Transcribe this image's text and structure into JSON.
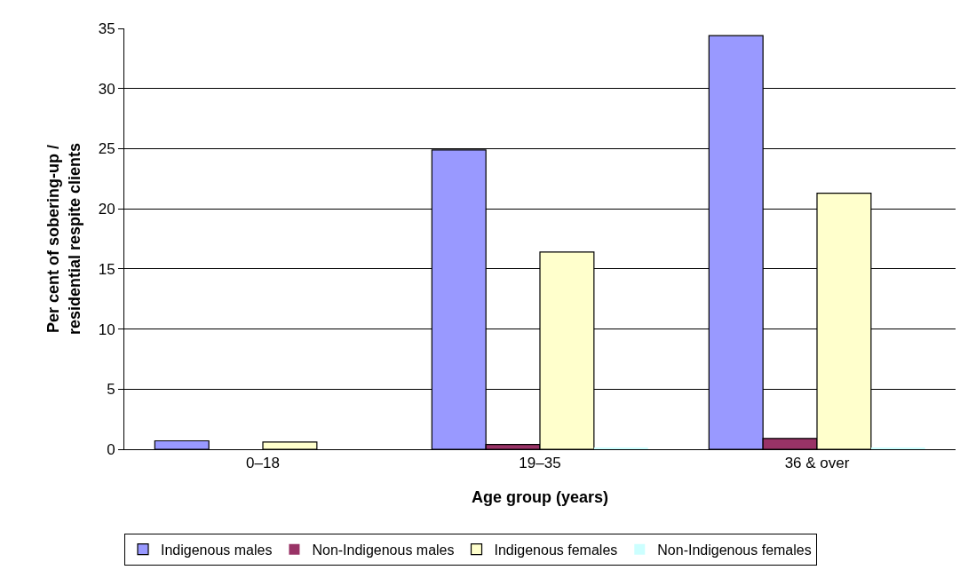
{
  "chart_data": {
    "type": "bar",
    "xlabel": "Age group (years)",
    "ylabel": "Per cent of sobering-up /\nresidential respite clients",
    "categories": [
      "0–18",
      "19–35",
      "36 & over"
    ],
    "series": [
      {
        "name": "Indigenous males",
        "color": "#9999ff",
        "values": [
          0.7,
          24.9,
          34.4
        ]
      },
      {
        "name": "Non-Indigenous males",
        "color": "#993366",
        "values": [
          0,
          0.4,
          0.9
        ]
      },
      {
        "name": "Indigenous females",
        "color": "#ffffcc",
        "values": [
          0.6,
          16.4,
          21.3
        ]
      },
      {
        "name": "Non-Indigenous females",
        "color": "#ccffff",
        "values": [
          0,
          0.1,
          0.1
        ]
      }
    ],
    "ylim": [
      0,
      35
    ],
    "yticks": [
      0,
      5,
      10,
      15,
      20,
      25,
      30,
      35
    ],
    "grid": "y",
    "legend": "bottom"
  }
}
